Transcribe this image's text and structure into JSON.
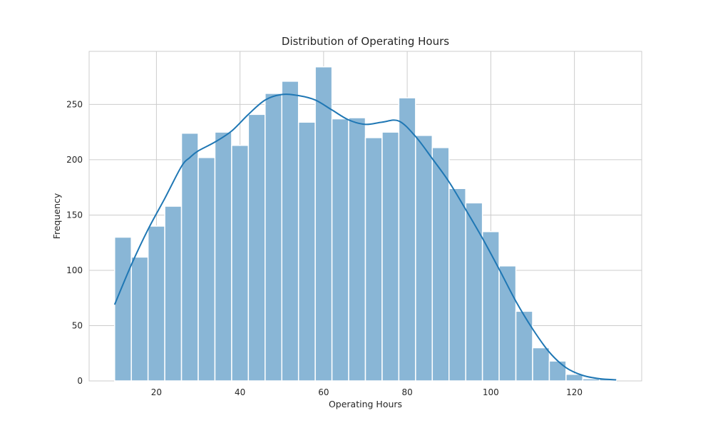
{
  "chart_data": {
    "type": "bar",
    "title": "Distribution of Operating Hours",
    "xlabel": "Operating Hours",
    "ylabel": "Frequency",
    "xlim": [
      3.9,
      136.1
    ],
    "ylim": [
      0,
      298
    ],
    "xticks": [
      20,
      40,
      60,
      80,
      100,
      120
    ],
    "yticks": [
      0,
      50,
      100,
      150,
      200,
      250
    ],
    "grid": true,
    "bin_edges": [
      10,
      14,
      18,
      22,
      26,
      30,
      34,
      38,
      42,
      46,
      50,
      54,
      58,
      62,
      66,
      70,
      74,
      78,
      82,
      86,
      90,
      94,
      98,
      102,
      106,
      110,
      114,
      118,
      122,
      126,
      130
    ],
    "values": [
      130,
      112,
      140,
      158,
      224,
      202,
      225,
      213,
      241,
      260,
      271,
      234,
      284,
      237,
      238,
      220,
      225,
      256,
      222,
      211,
      174,
      161,
      135,
      104,
      63,
      30,
      18,
      6,
      2,
      2
    ],
    "bar_color": "#89b6d6",
    "kde": {
      "color": "#1f77b4",
      "x": [
        10,
        14,
        18,
        22,
        26,
        28,
        30,
        34,
        38,
        42,
        46,
        50,
        54,
        58,
        62,
        66,
        70,
        74,
        78,
        82,
        86,
        90,
        94,
        98,
        102,
        106,
        110,
        114,
        118,
        122,
        126,
        130
      ],
      "y": [
        69,
        105,
        137,
        165,
        194,
        202,
        208,
        216,
        226,
        241,
        254,
        259,
        258,
        254,
        245,
        236,
        232,
        234,
        235,
        221,
        201,
        180,
        155,
        129,
        101,
        72,
        47,
        26,
        12,
        5,
        2,
        1
      ]
    }
  }
}
